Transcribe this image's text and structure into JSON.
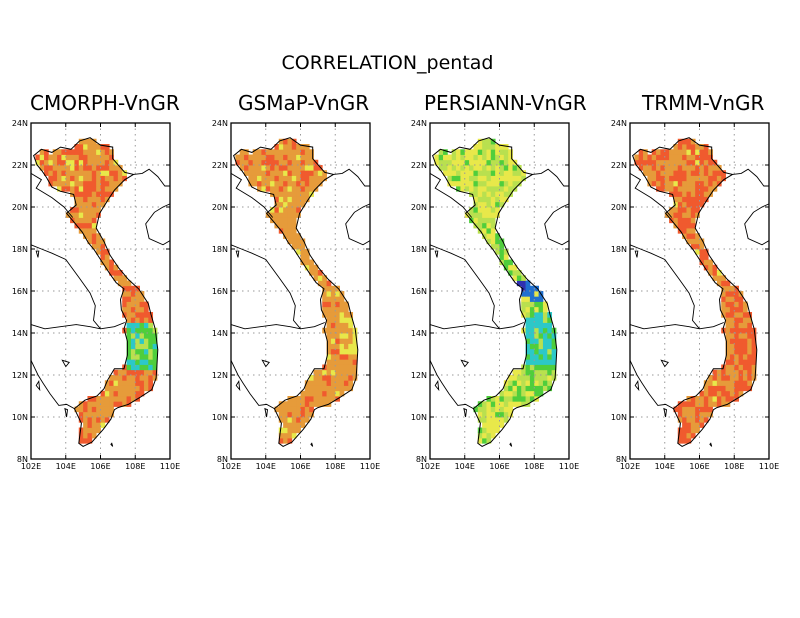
{
  "figure": {
    "title": "CORRELATION_pentad"
  },
  "axes": {
    "lat_ticks": [
      "24N",
      "22N",
      "20N",
      "18N",
      "16N",
      "14N",
      "12N",
      "10N",
      "8N"
    ],
    "lon_ticks": [
      "102E",
      "104E",
      "106E",
      "108E",
      "110E"
    ],
    "lat_range": [
      8,
      24
    ],
    "lon_range": [
      102,
      110
    ],
    "grid": "dotted"
  },
  "panels": [
    {
      "title": "CMORPH-VnGR",
      "palette": "cmorph"
    },
    {
      "title": "GSMaP-VnGR",
      "palette": "gsmap"
    },
    {
      "title": "PERSIANN-VnGR",
      "palette": "persiann"
    },
    {
      "title": "TRMM-VnGR",
      "palette": "trmm"
    }
  ],
  "colors": {
    "red": "#f05a2e",
    "orange": "#e69b3a",
    "yellow": "#e8e84a",
    "light_green": "#b9e04f",
    "green": "#4fce3c",
    "cyan": "#2cc8c8",
    "blue": "#2070d0",
    "dark_blue": "#3030b0"
  }
}
